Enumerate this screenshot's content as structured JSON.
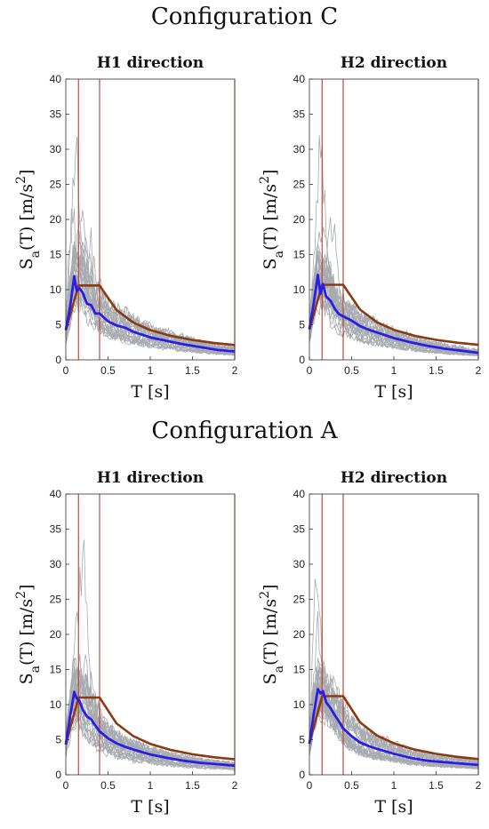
{
  "figure": {
    "config_c_title": "Configuration C",
    "config_a_title": "Configuration A"
  },
  "chart_data": [
    {
      "type": "line",
      "group": "Configuration C",
      "title": "H1 direction",
      "xlabel": "T [s]",
      "ylabel_parts": {
        "s": "S",
        "sub": "a",
        "mid": "(T) [m/s",
        "sup": "2",
        "end": "]"
      },
      "xlim": [
        0,
        2
      ],
      "ylim": [
        0,
        40
      ],
      "xticks": [
        0,
        0.5,
        1,
        1.5,
        2
      ],
      "xtick_labels": [
        "0",
        "0.5",
        "1",
        "1.5",
        "2"
      ],
      "yticks": [
        0,
        5,
        10,
        15,
        20,
        25,
        30,
        35,
        40
      ],
      "ytick_labels": [
        "0",
        "5",
        "10",
        "15",
        "20",
        "25",
        "30",
        "35",
        "40"
      ],
      "vlines": [
        0.15,
        0.4,
        2.0
      ],
      "colors": {
        "records": "#a7abaf",
        "mean": "#2b1de6",
        "code": "#8b3a12",
        "vline": "#c0392b"
      },
      "code_spectrum": {
        "x": [
          0,
          0.15,
          0.4,
          0.6,
          0.8,
          1.0,
          1.25,
          1.5,
          1.75,
          2.0
        ],
        "y": [
          4.2,
          10.6,
          10.6,
          7.1,
          5.3,
          4.24,
          3.4,
          2.83,
          2.42,
          2.12
        ]
      },
      "mean_spectrum": {
        "x": [
          0,
          0.05,
          0.1,
          0.13,
          0.16,
          0.2,
          0.25,
          0.3,
          0.35,
          0.4,
          0.5,
          0.6,
          0.7,
          0.8,
          1.0,
          1.2,
          1.4,
          1.6,
          1.8,
          2.0
        ],
        "y": [
          4.3,
          7.5,
          11.9,
          9.8,
          10.2,
          9.6,
          8.0,
          7.8,
          6.6,
          6.6,
          5.5,
          4.9,
          4.6,
          4.0,
          3.2,
          2.7,
          2.2,
          1.8,
          1.4,
          1.2
        ]
      },
      "records_peak": 36.5,
      "records_seed": 11
    },
    {
      "type": "line",
      "group": "Configuration C",
      "title": "H2 direction",
      "xlabel": "T [s]",
      "ylabel_parts": {
        "s": "S",
        "sub": "a",
        "mid": "(T) [m/s",
        "sup": "2",
        "end": "]"
      },
      "xlim": [
        0,
        2
      ],
      "ylim": [
        0,
        40
      ],
      "xticks": [
        0,
        0.5,
        1,
        1.5,
        2
      ],
      "xtick_labels": [
        "0",
        "0.5",
        "1",
        "1.5",
        "2"
      ],
      "yticks": [
        0,
        5,
        10,
        15,
        20,
        25,
        30,
        35,
        40
      ],
      "ytick_labels": [
        "0",
        "5",
        "10",
        "15",
        "20",
        "25",
        "30",
        "35",
        "40"
      ],
      "vlines": [
        0.15,
        0.4,
        2.0
      ],
      "colors": {
        "records": "#a7abaf",
        "mean": "#2b1de6",
        "code": "#8b3a12",
        "vline": "#c0392b"
      },
      "code_spectrum": {
        "x": [
          0,
          0.15,
          0.4,
          0.6,
          0.8,
          1.0,
          1.25,
          1.5,
          1.75,
          2.0
        ],
        "y": [
          4.3,
          10.7,
          10.7,
          7.15,
          5.35,
          4.28,
          3.42,
          2.85,
          2.44,
          2.14
        ]
      },
      "mean_spectrum": {
        "x": [
          0,
          0.05,
          0.1,
          0.13,
          0.16,
          0.2,
          0.25,
          0.3,
          0.35,
          0.4,
          0.5,
          0.6,
          0.7,
          0.8,
          1.0,
          1.2,
          1.4,
          1.6,
          1.8,
          2.0
        ],
        "y": [
          4.4,
          8.0,
          12.1,
          9.4,
          10.8,
          9.0,
          8.4,
          7.3,
          6.5,
          6.2,
          5.6,
          4.8,
          4.3,
          3.9,
          3.1,
          2.5,
          2.0,
          1.6,
          1.3,
          1.0
        ]
      },
      "records_peak": 36.5,
      "records_seed": 23
    },
    {
      "type": "line",
      "group": "Configuration A",
      "title": "H1 direction",
      "xlabel": "T [s]",
      "ylabel_parts": {
        "s": "S",
        "sub": "a",
        "mid": "(T) [m/s",
        "sup": "2",
        "end": "]"
      },
      "xlim": [
        0,
        2
      ],
      "ylim": [
        0,
        40
      ],
      "xticks": [
        0,
        0.5,
        1,
        1.5,
        2
      ],
      "xtick_labels": [
        "0",
        "0.5",
        "1",
        "1.5",
        "2"
      ],
      "yticks": [
        0,
        5,
        10,
        15,
        20,
        25,
        30,
        35,
        40
      ],
      "ytick_labels": [
        "0",
        "5",
        "10",
        "15",
        "20",
        "25",
        "30",
        "35",
        "40"
      ],
      "vlines": [
        0.15,
        0.4,
        2.0
      ],
      "colors": {
        "records": "#a7abaf",
        "mean": "#2b1de6",
        "code": "#8b3a12",
        "vline": "#c0392b"
      },
      "code_spectrum": {
        "x": [
          0,
          0.15,
          0.4,
          0.6,
          0.8,
          1.0,
          1.25,
          1.5,
          1.75,
          2.0
        ],
        "y": [
          4.4,
          11.0,
          11.0,
          7.33,
          5.5,
          4.4,
          3.52,
          2.93,
          2.51,
          2.2
        ]
      },
      "mean_spectrum": {
        "x": [
          0,
          0.05,
          0.1,
          0.13,
          0.16,
          0.2,
          0.25,
          0.3,
          0.35,
          0.4,
          0.5,
          0.6,
          0.7,
          0.8,
          1.0,
          1.2,
          1.4,
          1.6,
          1.8,
          2.0
        ],
        "y": [
          4.3,
          8.3,
          11.8,
          10.9,
          10.6,
          9.3,
          8.3,
          7.9,
          7.0,
          6.2,
          5.2,
          4.5,
          4.0,
          3.6,
          2.9,
          2.4,
          2.0,
          1.7,
          1.5,
          1.3
        ]
      },
      "records_peak": 36.5,
      "records_seed": 37
    },
    {
      "type": "line",
      "group": "Configuration A",
      "title": "H2 direction",
      "xlabel": "T [s]",
      "ylabel_parts": {
        "s": "S",
        "sub": "a",
        "mid": "(T) [m/s",
        "sup": "2",
        "end": "]"
      },
      "xlim": [
        0,
        2
      ],
      "ylim": [
        0,
        40
      ],
      "xticks": [
        0,
        0.5,
        1,
        1.5,
        2
      ],
      "xtick_labels": [
        "0",
        "0.5",
        "1",
        "1.5",
        "2"
      ],
      "yticks": [
        0,
        5,
        10,
        15,
        20,
        25,
        30,
        35,
        40
      ],
      "ytick_labels": [
        "0",
        "5",
        "10",
        "15",
        "20",
        "25",
        "30",
        "35",
        "40"
      ],
      "vlines": [
        0.15,
        0.4,
        2.0
      ],
      "colors": {
        "records": "#a7abaf",
        "mean": "#2b1de6",
        "code": "#8b3a12",
        "vline": "#c0392b"
      },
      "code_spectrum": {
        "x": [
          0,
          0.15,
          0.4,
          0.6,
          0.8,
          1.0,
          1.25,
          1.5,
          1.75,
          2.0
        ],
        "y": [
          4.5,
          11.2,
          11.2,
          7.47,
          5.6,
          4.48,
          3.58,
          2.99,
          2.56,
          2.24
        ]
      },
      "mean_spectrum": {
        "x": [
          0,
          0.05,
          0.1,
          0.13,
          0.16,
          0.2,
          0.25,
          0.3,
          0.35,
          0.4,
          0.5,
          0.6,
          0.7,
          0.8,
          1.0,
          1.2,
          1.4,
          1.6,
          1.8,
          2.0
        ],
        "y": [
          4.4,
          8.6,
          12.2,
          11.6,
          11.9,
          10.3,
          9.5,
          8.5,
          7.6,
          6.6,
          5.5,
          4.6,
          4.1,
          3.7,
          3.0,
          2.4,
          2.0,
          1.8,
          1.6,
          1.4
        ]
      },
      "records_peak": 36.5,
      "records_seed": 53
    }
  ]
}
